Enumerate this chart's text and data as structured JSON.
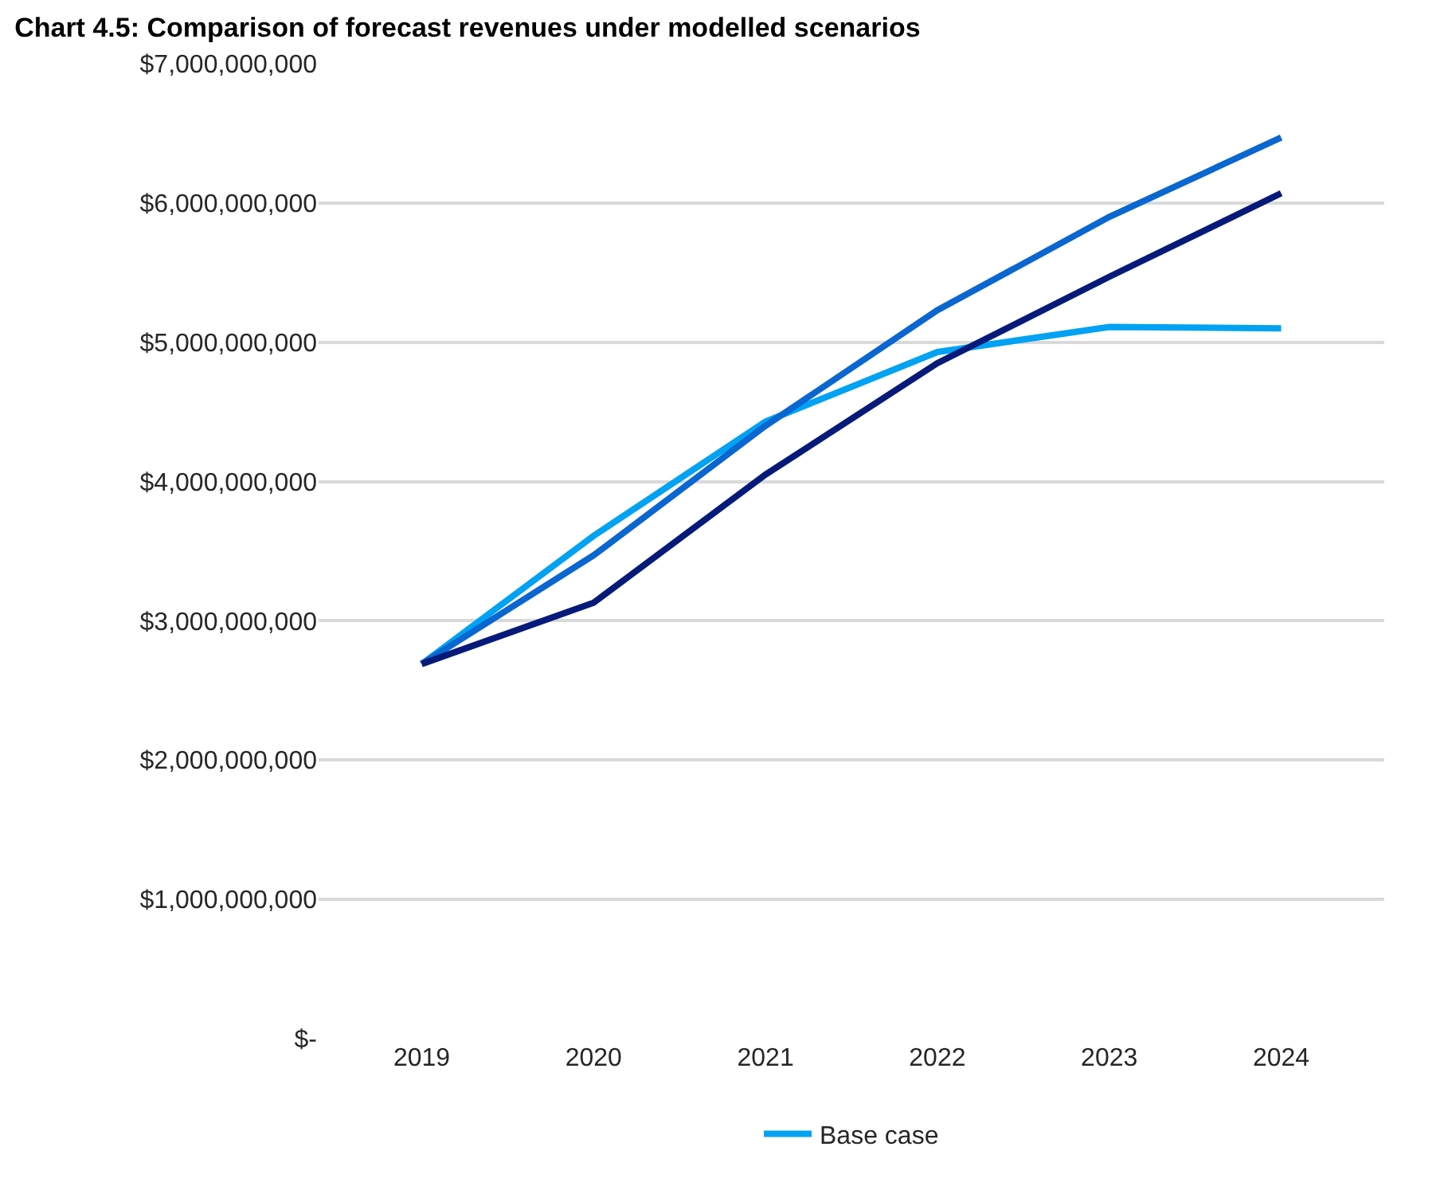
{
  "chart_data": {
    "type": "line",
    "title": "Chart 4.5: Comparison of forecast revenues under modelled scenarios",
    "categories": [
      "2019",
      "2020",
      "2021",
      "2022",
      "2023",
      "2024"
    ],
    "series": [
      {
        "name": "Base case",
        "color": "#00a2f3",
        "values": [
          2690000000,
          3610000000,
          4430000000,
          4930000000,
          5110000000,
          5100000000
        ]
      },
      {
        "color": "#0a66d0",
        "values": [
          2690000000,
          3470000000,
          4400000000,
          5230000000,
          5900000000,
          6470000000
        ]
      },
      {
        "color": "#061a7a",
        "values": [
          2690000000,
          3130000000,
          4050000000,
          4850000000,
          5470000000,
          6070000000
        ]
      }
    ],
    "ylim": [
      0,
      7000000000
    ],
    "yticks": [
      {
        "value": 0,
        "label": "$-"
      },
      {
        "value": 1000000000,
        "label": "$1,000,000,000"
      },
      {
        "value": 2000000000,
        "label": "$2,000,000,000"
      },
      {
        "value": 3000000000,
        "label": "$3,000,000,000"
      },
      {
        "value": 4000000000,
        "label": "$4,000,000,000"
      },
      {
        "value": 5000000000,
        "label": "$5,000,000,000"
      },
      {
        "value": 6000000000,
        "label": "$6,000,000,000"
      },
      {
        "value": 7000000000,
        "label": "$7,000,000,000"
      }
    ],
    "grid": "y",
    "legend": "bottom",
    "marker": "none",
    "line_style": "solid"
  }
}
